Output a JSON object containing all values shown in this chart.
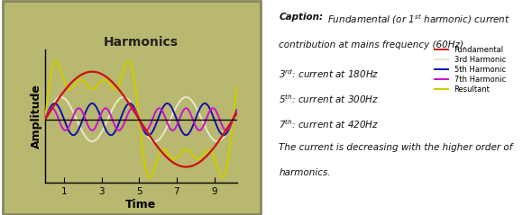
{
  "title": "Harmonics",
  "xlabel": "Time",
  "ylabel": "Amplitude",
  "panel_bg_color": "#b8b870",
  "plot_bg_color": "#b8b870",
  "outer_border_color": "#888860",
  "x_ticks": [
    1,
    3,
    5,
    7,
    9
  ],
  "x_range": [
    0.0,
    10.2
  ],
  "y_range": [
    -2.0,
    2.2
  ],
  "fundamental_color": "#cc1111",
  "third_color": "#e8e8cc",
  "fifth_color": "#1111aa",
  "seventh_color": "#cc11cc",
  "resultant_color": "#cccc00",
  "legend_labels": [
    "Fundamental",
    "3rd Harmonic",
    "5th Harmonic",
    "7th Harmonic",
    "Resultant"
  ],
  "fund_amp": 1.5,
  "third_amp": 0.7,
  "fifth_amp": 0.5,
  "seventh_amp": 0.35,
  "fund_freq_cycles": 1.0,
  "x_period": 10.0
}
